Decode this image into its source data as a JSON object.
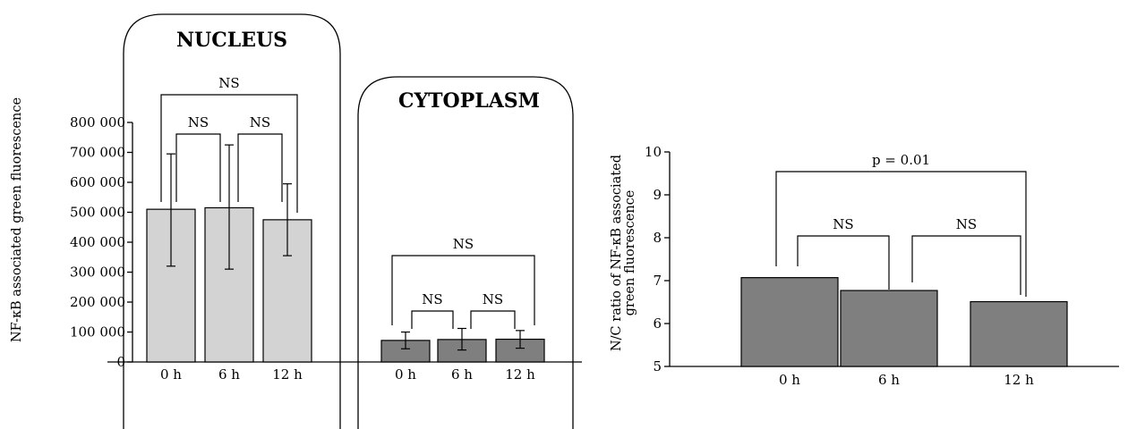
{
  "colors": {
    "light_bar": "#d3d3d3",
    "dark_bar": "#7f7f7f",
    "line": "#000000"
  },
  "chart_data": [
    {
      "type": "bar",
      "title": "NUCLEUS",
      "ylabel": "NF-κB associated green fluorescence",
      "xlabel": "",
      "ylim": [
        0,
        800000
      ],
      "yticks": [
        0,
        100000,
        200000,
        300000,
        400000,
        500000,
        600000,
        700000,
        800000
      ],
      "ytick_labels": [
        "0",
        "100 000",
        "200 000",
        "300 000",
        "400 000",
        "500 000",
        "600 000",
        "700 000",
        "800 000"
      ],
      "categories": [
        "0 h",
        "6 h",
        "12 h"
      ],
      "values": [
        510000,
        515000,
        475000
      ],
      "err_upper": [
        695000,
        725000,
        595000
      ],
      "err_lower": [
        320000,
        310000,
        355000
      ],
      "bar_color": "#d3d3d3",
      "comparisons": [
        {
          "a": 0,
          "b": 1,
          "label": "NS"
        },
        {
          "a": 1,
          "b": 2,
          "label": "NS"
        },
        {
          "a": 0,
          "b": 2,
          "label": "NS"
        }
      ]
    },
    {
      "type": "bar",
      "title": "CYTOPLASM",
      "ylim": [
        0,
        800000
      ],
      "categories": [
        "0 h",
        "6 h",
        "12 h"
      ],
      "values": [
        72000,
        75000,
        76000
      ],
      "err_upper": [
        100000,
        112000,
        105000
      ],
      "err_lower": [
        44000,
        40000,
        46000
      ],
      "bar_color": "#7f7f7f",
      "comparisons": [
        {
          "a": 0,
          "b": 1,
          "label": "NS"
        },
        {
          "a": 1,
          "b": 2,
          "label": "NS"
        },
        {
          "a": 0,
          "b": 2,
          "label": "NS"
        }
      ]
    },
    {
      "type": "bar",
      "title": "",
      "ylabel": "N/C ratio of NF-κB associated green fluorescence",
      "ylabel_lines": [
        "N/C ratio of NF-κB associated",
        "green fluorescence"
      ],
      "xlabel": "",
      "ylim": [
        5,
        10
      ],
      "yticks": [
        5,
        6,
        7,
        8,
        9,
        10
      ],
      "ytick_labels": [
        "5",
        "6",
        "7",
        "8",
        "9",
        "10"
      ],
      "categories": [
        "0 h",
        "6 h",
        "12 h"
      ],
      "values": [
        7.07,
        6.77,
        6.51
      ],
      "bar_color": "#7f7f7f",
      "comparisons": [
        {
          "a": 0,
          "b": 1,
          "label": "NS"
        },
        {
          "a": 1,
          "b": 2,
          "label": "NS"
        },
        {
          "a": 0,
          "b": 2,
          "label": "p = 0.01"
        }
      ]
    }
  ]
}
